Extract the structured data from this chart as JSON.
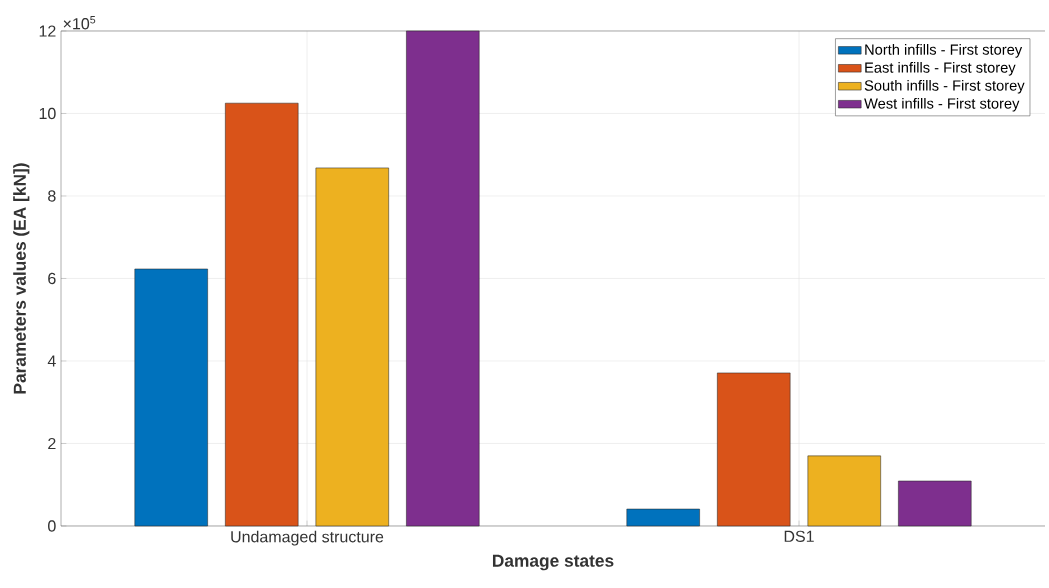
{
  "chart_data": {
    "type": "bar",
    "xlabel": "Damage states",
    "ylabel": "Parameters values (EA [kN])",
    "categories": [
      "Undamaged structure",
      "DS1"
    ],
    "series": [
      {
        "name": "North infills - First storey",
        "color": "#0072bd",
        "values": [
          6.23,
          0.41
        ]
      },
      {
        "name": "East infills - First storey",
        "color": "#d95319",
        "values": [
          10.25,
          3.71
        ]
      },
      {
        "name": "South infills - First storey",
        "color": "#edb120",
        "values": [
          8.68,
          1.7
        ]
      },
      {
        "name": "West infills - First storey",
        "color": "#7e2f8e",
        "values": [
          12,
          1.09
        ]
      }
    ],
    "ylim": [
      0,
      12
    ],
    "yticks": [
      0,
      2,
      4,
      6,
      8,
      10,
      12
    ],
    "annotations": [
      "×10$^{5}$"
    ],
    "grid": true,
    "legend": "top right"
  }
}
